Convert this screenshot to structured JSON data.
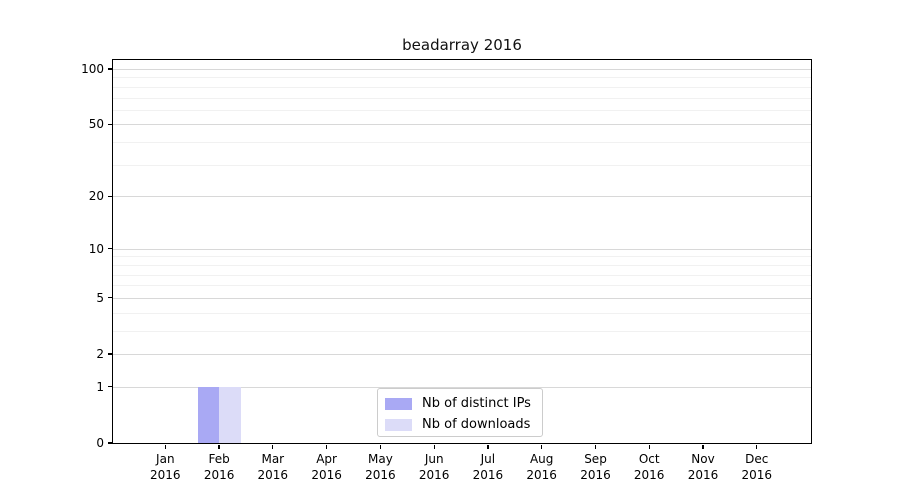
{
  "figure": {
    "title": "beadarray 2016",
    "background": "#ffffff"
  },
  "chart_data": {
    "type": "bar",
    "title": "beadarray 2016",
    "categories": [
      "Jan 2016",
      "Feb 2016",
      "Mar 2016",
      "Apr 2016",
      "May 2016",
      "Jun 2016",
      "Jul 2016",
      "Aug 2016",
      "Sep 2016",
      "Oct 2016",
      "Nov 2016",
      "Dec 2016"
    ],
    "series": [
      {
        "name": "Nb of distinct IPs",
        "color": "#a9a9f4",
        "values": [
          0,
          1,
          0,
          0,
          0,
          0,
          0,
          0,
          0,
          0,
          0,
          0
        ]
      },
      {
        "name": "Nb of downloads",
        "color": "#dcdcf8",
        "values": [
          0,
          1,
          0,
          0,
          0,
          0,
          0,
          0,
          0,
          0,
          0,
          0
        ]
      }
    ],
    "xlabel": "",
    "ylabel": "",
    "y_scale": "log1p",
    "y_ticks": [
      0,
      1,
      2,
      5,
      10,
      20,
      50,
      100
    ],
    "y_minor_ticks": [
      3,
      4,
      6,
      7,
      8,
      9,
      30,
      40,
      60,
      70,
      80,
      90
    ],
    "ylim": [
      0,
      112
    ],
    "grid": true,
    "grid_color_major": "#d8d8d8",
    "grid_color_minor": "#f1f1f1",
    "axis_color": "#000000",
    "legend_position": "lower center"
  }
}
